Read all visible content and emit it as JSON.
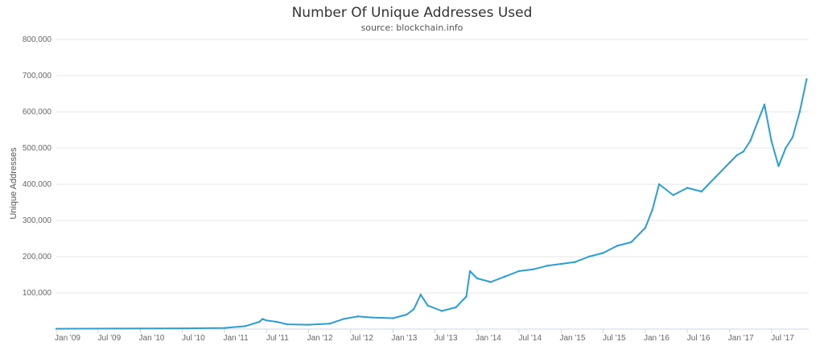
{
  "chart_data": {
    "type": "line",
    "title": "Number Of Unique Addresses Used",
    "subtitle": "source: blockchain.info",
    "xlabel": "",
    "ylabel": "Unique Addresses",
    "xlim": [
      "2009-01-01",
      "2017-12-10"
    ],
    "ylim": [
      0,
      800000
    ],
    "y_ticks": [
      100000,
      200000,
      300000,
      400000,
      500000,
      600000,
      700000,
      800000
    ],
    "y_tick_labels": [
      "100,000",
      "200,000",
      "300,000",
      "400,000",
      "500,000",
      "600,000",
      "700,000",
      "800,000"
    ],
    "x_ticks": [
      "2009-01-01",
      "2009-07-01",
      "2010-01-01",
      "2010-07-01",
      "2011-01-01",
      "2011-07-01",
      "2012-01-01",
      "2012-07-01",
      "2013-01-01",
      "2013-07-01",
      "2014-01-01",
      "2014-07-01",
      "2015-01-01",
      "2015-07-01",
      "2016-01-01",
      "2016-07-01",
      "2017-01-01",
      "2017-07-01"
    ],
    "x_tick_labels": [
      "Jan '09",
      "Jul '09",
      "Jan '10",
      "Jul '10",
      "Jan '11",
      "Jul '11",
      "Jan '12",
      "Jul '12",
      "Jan '13",
      "Jul '13",
      "Jan '14",
      "Jul '14",
      "Jan '15",
      "Jul '15",
      "Jan '16",
      "Jul '16",
      "Jan '17",
      "Jul '17"
    ],
    "grid": "horizontal",
    "legend": "none",
    "line_color": "#2b9fd4",
    "series": [
      {
        "x": [
          "2009-01-01",
          "2010-01-01",
          "2010-07-01",
          "2011-01-01",
          "2011-04-01",
          "2011-06-01",
          "2011-06-15",
          "2011-07-01",
          "2011-08-15",
          "2011-10-01",
          "2012-01-01",
          "2012-04-01",
          "2012-06-01",
          "2012-08-01",
          "2012-10-01",
          "2013-01-01",
          "2013-03-01",
          "2013-04-01",
          "2013-05-01",
          "2013-06-01",
          "2013-08-01",
          "2013-10-01",
          "2013-11-15",
          "2013-12-01",
          "2014-01-01",
          "2014-03-01",
          "2014-05-01",
          "2014-07-01",
          "2014-09-01",
          "2014-11-01",
          "2015-01-01",
          "2015-03-01",
          "2015-05-01",
          "2015-07-01",
          "2015-09-01",
          "2015-11-01",
          "2016-01-01",
          "2016-02-01",
          "2016-03-01",
          "2016-05-01",
          "2016-07-01",
          "2016-09-01",
          "2016-11-01",
          "2017-01-01",
          "2017-02-01",
          "2017-03-01",
          "2017-04-01",
          "2017-05-01",
          "2017-06-01",
          "2017-07-01",
          "2017-08-01",
          "2017-09-01",
          "2017-10-01",
          "2017-11-01",
          "2017-12-01"
        ],
        "values": [
          1000,
          1500,
          2000,
          3000,
          8000,
          20000,
          28000,
          24000,
          20000,
          13000,
          12000,
          15000,
          28000,
          35000,
          32000,
          30000,
          40000,
          55000,
          95000,
          65000,
          50000,
          60000,
          90000,
          160000,
          140000,
          130000,
          145000,
          160000,
          165000,
          175000,
          180000,
          185000,
          200000,
          210000,
          230000,
          240000,
          280000,
          330000,
          400000,
          370000,
          390000,
          380000,
          420000,
          460000,
          480000,
          490000,
          520000,
          570000,
          620000,
          520000,
          450000,
          500000,
          530000,
          600000,
          690000
        ]
      }
    ]
  }
}
